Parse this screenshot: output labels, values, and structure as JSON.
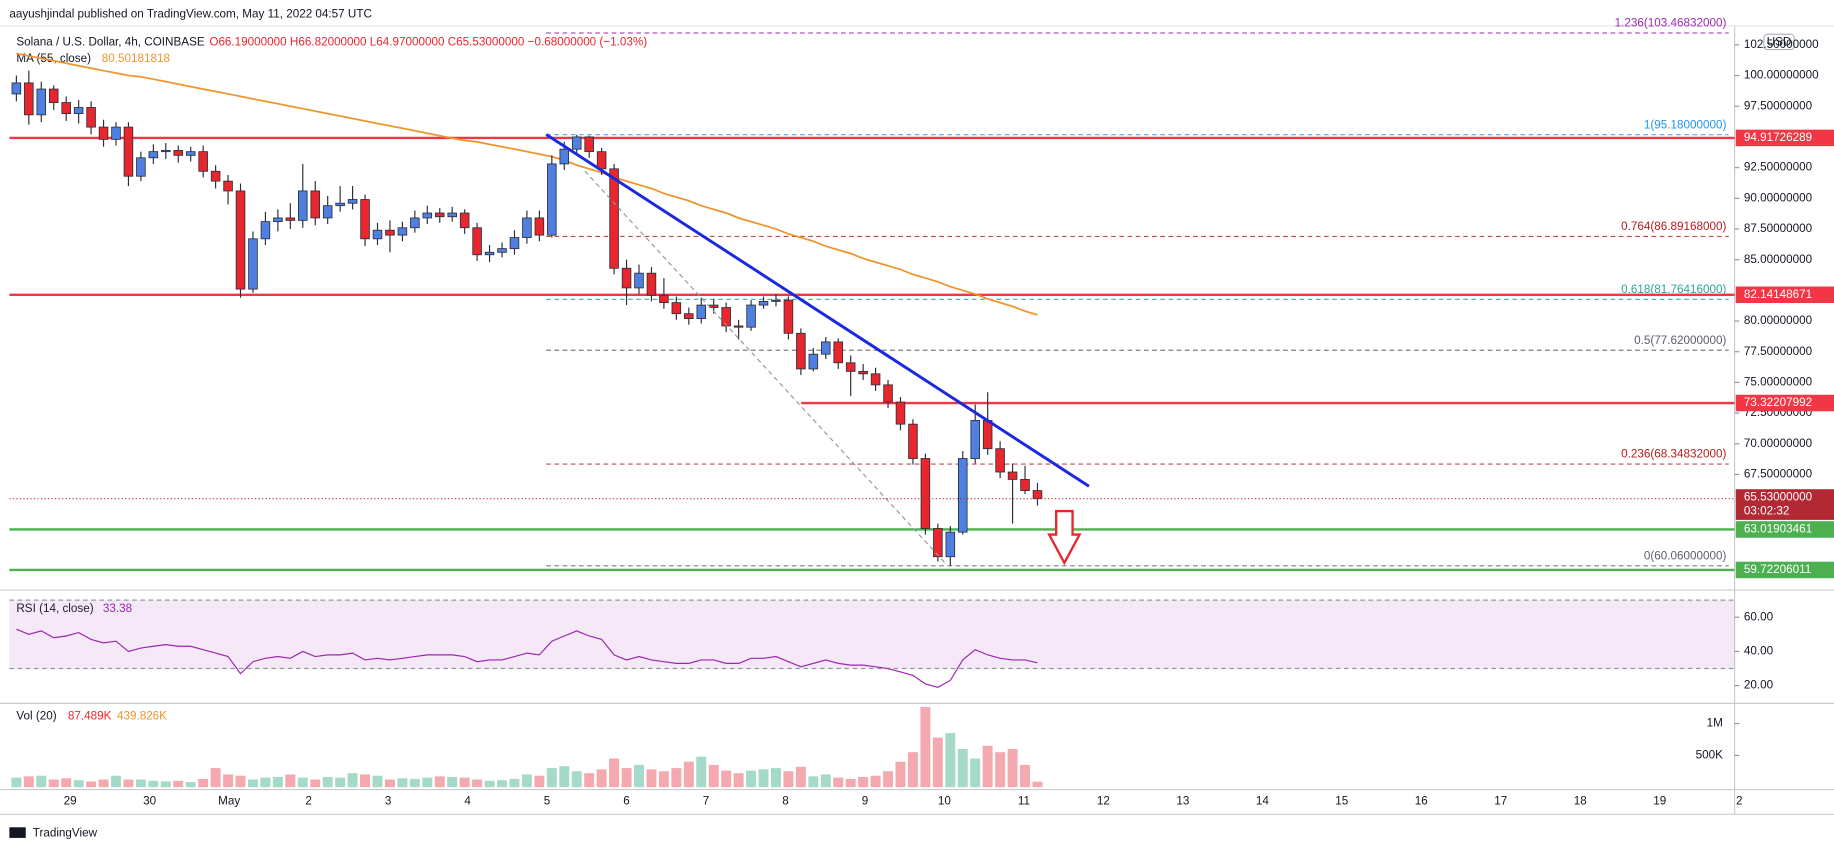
{
  "header": {
    "published": "aayushjindal published on TradingView.com, May 11, 2022 04:57 UTC",
    "symbol": "Solana / U.S. Dollar, 4h, COINBASE",
    "ohlc": "O66.19000000 H66.82000000 L64.97000000 C65.53000000 −0.68000000 (−1.03%)",
    "ma_label": "MA (55, close)",
    "ma_value": "80.50181818",
    "rsi_label": "RSI (14, close)",
    "rsi_value": "33.38",
    "vol_label": "Vol (20)",
    "vol_value": "87.489K",
    "vol_ma_value": "439.826K",
    "currency": "USD",
    "brand": "TradingView"
  },
  "chart_data": {
    "type": "candlestick",
    "up_color": "#4f7fe0",
    "down_color": "#e8262d",
    "open": [
      98.5,
      99.4,
      96.8,
      98.9,
      97.8,
      96.9,
      97.4,
      95.8,
      94.8,
      95.8,
      91.8,
      93.3,
      93.8,
      93.9,
      93.5,
      93.8,
      92.2,
      91.4,
      90.6,
      82.6,
      86.7,
      88.1,
      88.4,
      88.2,
      90.6,
      88.4,
      89.4,
      89.6,
      89.9,
      86.7,
      87.4,
      87.0,
      87.6,
      88.4,
      88.8,
      88.5,
      88.8,
      87.6,
      85.4,
      85.6,
      85.9,
      86.8,
      88.4,
      87.0,
      92.8,
      94.0,
      95.0,
      93.8,
      92.4,
      84.3,
      82.7,
      83.9,
      82.1,
      81.5,
      80.6,
      80.2,
      81.3,
      81.1,
      79.6,
      79.5,
      81.3,
      81.6,
      81.7,
      79.0,
      76.1,
      77.3,
      78.3,
      76.6,
      75.9,
      75.7,
      74.8,
      73.4,
      71.6,
      68.8,
      63.1,
      60.8,
      62.8,
      68.8,
      71.9,
      69.6,
      67.7,
      67.1,
      66.19
    ],
    "high": [
      100.0,
      100.4,
      99.5,
      99.2,
      98.3,
      98.0,
      97.9,
      96.4,
      96.2,
      96.2,
      93.8,
      94.4,
      94.5,
      94.3,
      94.2,
      94.3,
      92.7,
      91.9,
      91.2,
      87.3,
      88.9,
      89.1,
      89.6,
      92.8,
      91.4,
      90.2,
      91.0,
      91.0,
      90.3,
      88.0,
      88.2,
      88.1,
      89.0,
      89.4,
      89.2,
      89.3,
      89.1,
      88.0,
      86.2,
      86.4,
      87.4,
      89.0,
      89.0,
      93.5,
      94.6,
      95.18,
      95.1,
      94.1,
      92.8,
      85.0,
      84.6,
      84.4,
      83.5,
      82.0,
      81.1,
      81.9,
      81.8,
      81.5,
      80.1,
      81.7,
      82.0,
      82.2,
      82.0,
      79.4,
      77.8,
      78.7,
      78.6,
      77.2,
      76.5,
      76.2,
      75.2,
      73.8,
      72.0,
      69.2,
      63.5,
      63.3,
      69.4,
      73.2,
      74.2,
      70.2,
      68.4,
      68.2,
      66.82
    ],
    "low": [
      97.9,
      96.0,
      96.2,
      97.2,
      96.3,
      96.1,
      95.2,
      94.2,
      94.3,
      91.0,
      91.4,
      92.8,
      93.2,
      92.9,
      93.0,
      91.7,
      90.8,
      89.5,
      81.9,
      82.3,
      86.2,
      87.3,
      87.5,
      87.6,
      87.8,
      87.9,
      88.9,
      89.1,
      86.1,
      86.2,
      85.6,
      86.5,
      87.2,
      87.9,
      88.0,
      88.1,
      87.1,
      84.9,
      84.8,
      85.2,
      85.4,
      86.3,
      86.5,
      86.8,
      92.3,
      93.6,
      93.3,
      91.9,
      83.8,
      81.3,
      82.2,
      81.6,
      81.0,
      80.1,
      79.7,
      79.8,
      80.6,
      79.1,
      78.5,
      79.2,
      81.0,
      81.2,
      78.5,
      75.6,
      75.9,
      76.9,
      76.1,
      73.9,
      75.2,
      74.3,
      72.9,
      71.1,
      68.3,
      62.6,
      60.4,
      60.06,
      62.6,
      68.4,
      69.1,
      67.2,
      63.5,
      65.9,
      64.97
    ],
    "close": [
      99.4,
      96.8,
      98.9,
      97.8,
      96.9,
      97.4,
      95.8,
      94.8,
      95.8,
      91.8,
      93.3,
      93.8,
      93.9,
      93.5,
      93.8,
      92.2,
      91.4,
      90.6,
      82.6,
      86.7,
      88.1,
      88.4,
      88.2,
      90.6,
      88.4,
      89.4,
      89.6,
      89.9,
      86.7,
      87.4,
      87.0,
      87.6,
      88.4,
      88.8,
      88.5,
      88.8,
      87.6,
      85.4,
      85.6,
      85.9,
      86.8,
      88.4,
      87.0,
      92.8,
      94.0,
      95.0,
      93.8,
      92.4,
      84.3,
      82.7,
      83.9,
      82.1,
      81.5,
      80.6,
      80.2,
      81.3,
      81.1,
      79.6,
      79.5,
      81.3,
      81.6,
      81.7,
      79.0,
      76.1,
      77.3,
      78.3,
      76.6,
      75.9,
      75.7,
      74.8,
      73.4,
      71.6,
      68.8,
      63.1,
      60.8,
      62.8,
      68.8,
      71.9,
      69.6,
      67.7,
      67.1,
      66.19,
      65.53
    ],
    "ylim": [
      58.37,
      104.04
    ],
    "yticks": [
      {
        "value": 67.5,
        "label": "67.50000000"
      },
      {
        "value": 70,
        "label": "70.00000000"
      },
      {
        "value": 72.5,
        "label": "72.50000000"
      },
      {
        "value": 75,
        "label": "75.00000000"
      },
      {
        "value": 77.5,
        "label": "77.50000000"
      },
      {
        "value": 80,
        "label": "80.00000000"
      },
      {
        "value": 85,
        "label": "85.00000000"
      },
      {
        "value": 87.5,
        "label": "87.50000000"
      },
      {
        "value": 90,
        "label": "90.00000000"
      },
      {
        "value": 92.5,
        "label": "92.50000000"
      },
      {
        "value": 97.5,
        "label": "97.50000000"
      },
      {
        "value": 100,
        "label": "100.00000000"
      },
      {
        "value": 102.5,
        "label": "102.50000000"
      }
    ],
    "xticks": [
      "29",
      "30",
      "May",
      "2",
      "3",
      "4",
      "5",
      "6",
      "7",
      "8",
      "9",
      "10",
      "11",
      "12",
      "13",
      "14",
      "15",
      "16",
      "17",
      "18",
      "19",
      "2"
    ],
    "ma": {
      "name": "MA (55, close)",
      "color": "#f0952d",
      "values": [
        101.8,
        101.6,
        101.4,
        101.2,
        101.0,
        100.8,
        100.6,
        100.4,
        100.2,
        100.0,
        99.9,
        99.7,
        99.5,
        99.3,
        99.1,
        98.9,
        98.7,
        98.5,
        98.3,
        98.1,
        97.9,
        97.7,
        97.5,
        97.3,
        97.1,
        96.9,
        96.7,
        96.5,
        96.3,
        96.1,
        95.9,
        95.7,
        95.5,
        95.3,
        95.1,
        94.9,
        94.7,
        94.6,
        94.4,
        94.2,
        94.0,
        93.8,
        93.6,
        93.4,
        93.1,
        92.7,
        92.4,
        92.1,
        91.7,
        91.4,
        91.1,
        90.8,
        90.4,
        90.1,
        89.8,
        89.4,
        89.1,
        88.8,
        88.4,
        88.1,
        87.8,
        87.5,
        87.1,
        86.8,
        86.5,
        86.1,
        85.8,
        85.5,
        85.1,
        84.8,
        84.5,
        84.2,
        83.8,
        83.5,
        83.2,
        82.8,
        82.5,
        82.2,
        81.8,
        81.5,
        81.2,
        80.8,
        80.50181818
      ]
    },
    "levels": [
      {
        "value": 94.91726289,
        "label": "94.91726289",
        "color": "#f23645"
      },
      {
        "value": 82.14148671,
        "label": "82.14148671",
        "color": "#f23645"
      },
      {
        "value": 73.32207992,
        "label": "73.32207992",
        "color": "#f23645"
      },
      {
        "value": 63.01903461,
        "label": "63.01903461",
        "color": "#4caf50"
      },
      {
        "value": 59.72206011,
        "label": "59.72206011",
        "color": "#4caf50"
      }
    ],
    "fib": [
      {
        "value": 103.46832,
        "label": "1.236(103.46832000)",
        "color": "#9c27b0"
      },
      {
        "value": 95.18,
        "label": "1(95.18000000)",
        "color": "#2196f3"
      },
      {
        "value": 86.89168,
        "label": "0.764(86.89168000)",
        "color": "#b71c1c"
      },
      {
        "value": 81.76416,
        "label": "0.618(81.76416000)",
        "color": "#26a69a"
      },
      {
        "value": 77.62,
        "label": "0.5(77.62000000)",
        "color": "#5d606b"
      },
      {
        "value": 68.34832,
        "label": "0.236(68.34832000)",
        "color": "#b71c1c"
      },
      {
        "value": 60.06,
        "label": "0(60.06000000)",
        "color": "#5d606b"
      }
    ],
    "last": {
      "value": 65.53,
      "label": "65.53000000",
      "countdown": "03:02:32",
      "color": "#b22833"
    },
    "rsi": {
      "name": "RSI (14, close)",
      "color": "#9c27b0",
      "ylim": [
        10.3,
        73.8
      ],
      "band": [
        30,
        70
      ],
      "yticks": [
        {
          "value": 60,
          "label": "60.00"
        },
        {
          "value": 40,
          "label": "40.00"
        },
        {
          "value": 20,
          "label": "20.00"
        }
      ],
      "values": [
        53,
        50,
        52,
        48,
        49,
        51,
        47,
        45,
        46,
        40,
        42,
        43,
        44,
        43,
        43,
        41,
        39,
        37,
        27,
        34,
        36,
        37,
        36,
        40,
        37,
        38,
        38,
        39,
        35,
        36,
        35,
        36,
        37,
        38,
        38,
        38,
        37,
        34,
        35,
        35,
        37,
        39,
        38,
        46,
        49,
        52,
        49,
        47,
        38,
        35,
        37,
        35,
        34,
        33,
        33,
        35,
        35,
        33,
        33,
        36,
        36,
        37,
        34,
        31,
        33,
        35,
        33,
        32,
        32,
        31,
        30,
        28,
        26,
        21,
        19,
        23,
        35,
        41,
        38,
        36,
        35,
        35,
        33.38
      ]
    },
    "volume": {
      "name": "Vol (20)",
      "up_color": "#a5d9c8",
      "down_color": "#f4a9ae",
      "ylim": [
        0,
        1280000
      ],
      "yticks": [
        {
          "value": 500000,
          "label": "500K"
        },
        {
          "value": 1000000,
          "label": "1M"
        }
      ],
      "values": [
        150000,
        170000,
        180000,
        120000,
        140000,
        110000,
        90000,
        120000,
        180000,
        120000,
        120000,
        100000,
        90000,
        100000,
        80000,
        130000,
        300000,
        200000,
        180000,
        120000,
        150000,
        160000,
        200000,
        150000,
        120000,
        160000,
        150000,
        220000,
        200000,
        180000,
        120000,
        140000,
        130000,
        150000,
        170000,
        160000,
        150000,
        120000,
        100000,
        110000,
        130000,
        200000,
        180000,
        300000,
        330000,
        250000,
        220000,
        280000,
        450000,
        300000,
        350000,
        280000,
        250000,
        300000,
        400000,
        480000,
        350000,
        260000,
        220000,
        260000,
        280000,
        300000,
        250000,
        320000,
        170000,
        200000,
        150000,
        130000,
        160000,
        180000,
        250000,
        400000,
        550000,
        1260000,
        780000,
        850000,
        600000,
        450000,
        650000,
        550000,
        600000,
        350000,
        87489
      ]
    }
  }
}
